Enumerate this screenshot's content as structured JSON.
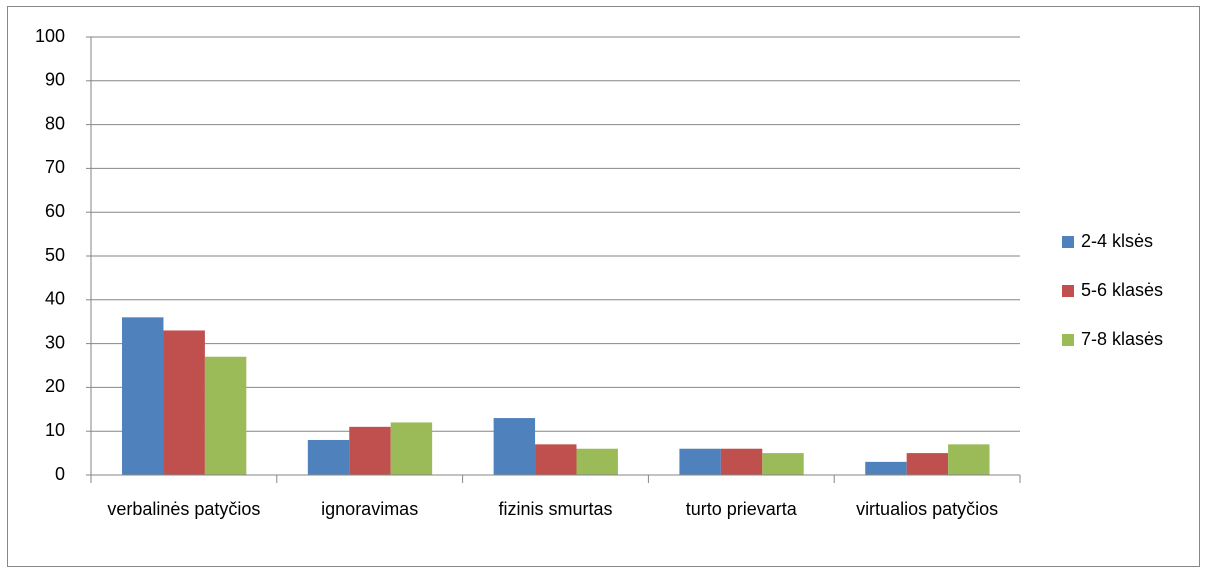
{
  "chart_data": {
    "type": "bar",
    "categories": [
      "verbalinės patyčios",
      "ignoravimas",
      "fizinis smurtas",
      "turto prievarta",
      "virtualios patyčios"
    ],
    "series": [
      {
        "name": "2-4 klsės",
        "color": "#4f81bd",
        "values": [
          36,
          8,
          13,
          6,
          3
        ]
      },
      {
        "name": "5-6 klasės",
        "color": "#c0504d",
        "values": [
          33,
          11,
          7,
          6,
          5
        ]
      },
      {
        "name": "7-8 klasės",
        "color": "#9bbb59",
        "values": [
          27,
          12,
          6,
          5,
          7
        ]
      }
    ],
    "ylim": [
      0,
      100
    ],
    "yticks": [
      0,
      10,
      20,
      30,
      40,
      50,
      60,
      70,
      80,
      90,
      100
    ],
    "grid": true,
    "legend": "right"
  }
}
